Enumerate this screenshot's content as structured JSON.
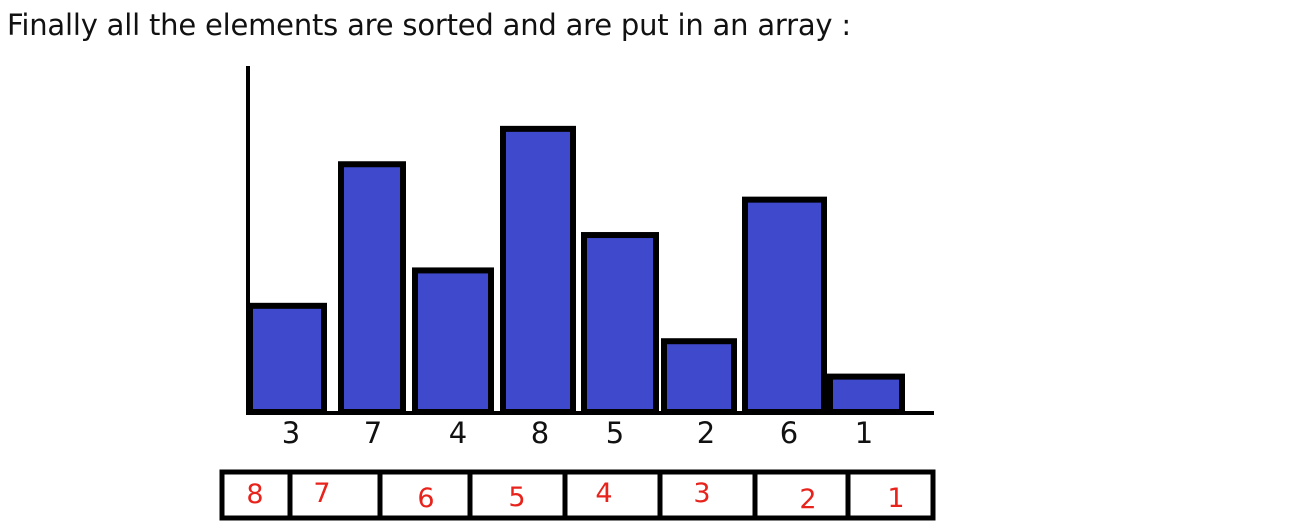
{
  "heading": "Finally all the elements are sorted and are put in an array :",
  "colors": {
    "bar_fill": "#3f49cc",
    "bar_stroke": "#000000",
    "axis": "#000000",
    "array_text": "#e8231c"
  },
  "chart_data": {
    "type": "bar",
    "categories": [
      "3",
      "7",
      "4",
      "8",
      "5",
      "2",
      "6",
      "1"
    ],
    "values": [
      3,
      7,
      4,
      8,
      5,
      2,
      6,
      1
    ],
    "title": "",
    "xlabel": "",
    "ylabel": "",
    "ylim": [
      0,
      8.9
    ]
  },
  "sorted_array": {
    "cells": [
      "8",
      "7",
      "6",
      "5",
      "4",
      "3",
      "2",
      "1"
    ]
  }
}
